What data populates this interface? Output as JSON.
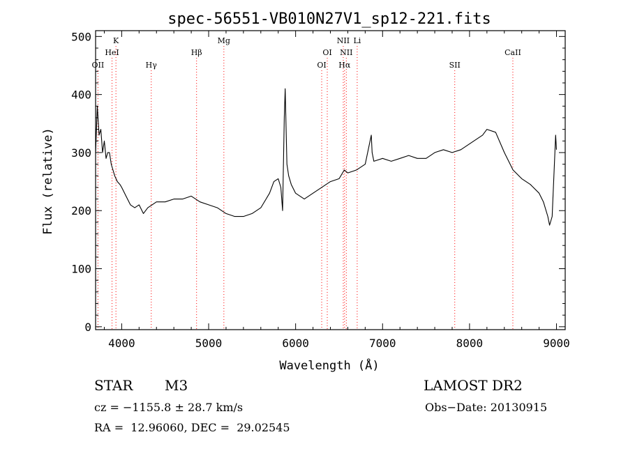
{
  "chart_data": {
    "type": "line",
    "title": "spec-56551-VB010N27V1_sp12-221.fits",
    "xlabel": "Wavelength (Å)",
    "ylabel": "Flux (relative)",
    "xlim": [
      3700,
      9100
    ],
    "ylim": [
      -5,
      510
    ],
    "xticks": [
      4000,
      5000,
      6000,
      7000,
      8000,
      9000
    ],
    "yticks": [
      0,
      100,
      200,
      300,
      400,
      500
    ],
    "grid": false,
    "line_color": "#000000",
    "marker_color": "#ff0000",
    "series": [
      {
        "x": [
          3700,
          3720,
          3740,
          3760,
          3780,
          3800,
          3820,
          3840,
          3860,
          3880,
          3900,
          3920,
          3950,
          3980,
          4000,
          4050,
          4100,
          4150,
          4200,
          4250,
          4300,
          4350,
          4400,
          4500,
          4600,
          4700,
          4800,
          4900,
          5000,
          5100,
          5200,
          5300,
          5400,
          5500,
          5600,
          5700,
          5750,
          5800,
          5830,
          5850,
          5870,
          5880,
          5900,
          5920,
          5950,
          6000,
          6050,
          6100,
          6200,
          6300,
          6350,
          6400,
          6500,
          6560,
          6600,
          6700,
          6800,
          6870,
          6880,
          6900,
          7000,
          7100,
          7200,
          7300,
          7400,
          7500,
          7600,
          7700,
          7800,
          7900,
          8000,
          8100,
          8150,
          8200,
          8300,
          8400,
          8500,
          8600,
          8700,
          8800,
          8850,
          8900,
          8920,
          8950,
          8970,
          8990,
          9000
        ],
        "y": [
          300,
          380,
          330,
          340,
          300,
          320,
          290,
          300,
          300,
          280,
          270,
          260,
          250,
          245,
          240,
          225,
          210,
          205,
          210,
          195,
          205,
          210,
          215,
          215,
          220,
          220,
          225,
          215,
          210,
          205,
          195,
          190,
          190,
          195,
          205,
          230,
          250,
          255,
          240,
          200,
          360,
          410,
          280,
          260,
          245,
          230,
          225,
          220,
          230,
          240,
          245,
          250,
          255,
          270,
          265,
          270,
          280,
          330,
          300,
          285,
          290,
          285,
          290,
          295,
          290,
          290,
          300,
          305,
          300,
          305,
          315,
          325,
          330,
          340,
          335,
          300,
          270,
          255,
          245,
          230,
          215,
          190,
          175,
          190,
          260,
          330,
          305
        ]
      }
    ],
    "lines": [
      {
        "label": "OII",
        "x": 3727,
        "row": 3
      },
      {
        "label": "K",
        "x": 3934,
        "row": 1
      },
      {
        "label": "HeI",
        "x": 3889,
        "row": 2
      },
      {
        "label": "Hγ",
        "x": 4340,
        "row": 3
      },
      {
        "label": "Hβ",
        "x": 4861,
        "row": 2
      },
      {
        "label": "Mg",
        "x": 5175,
        "row": 1
      },
      {
        "label": "OI",
        "x": 6300,
        "row": 3
      },
      {
        "label": "OI",
        "x": 6364,
        "row": 2
      },
      {
        "label": "NII",
        "x": 6548,
        "row": 1
      },
      {
        "label": "NII",
        "x": 6583,
        "row": 2
      },
      {
        "label": "Hα",
        "x": 6563,
        "row": 3
      },
      {
        "label": "Li",
        "x": 6708,
        "row": 1
      },
      {
        "label": "SII",
        "x": 7830,
        "row": 3
      },
      {
        "label": "CaII",
        "x": 8498,
        "row": 2
      }
    ]
  },
  "info": {
    "object_class": "STAR",
    "subclass": "M3",
    "survey": "LAMOST DR2",
    "cz": "cz = −1155.8 ± 28.7 km/s",
    "obs_date": "Obs−Date: 20130915",
    "coords": "RA =  12.96060, DEC =  29.02545"
  }
}
